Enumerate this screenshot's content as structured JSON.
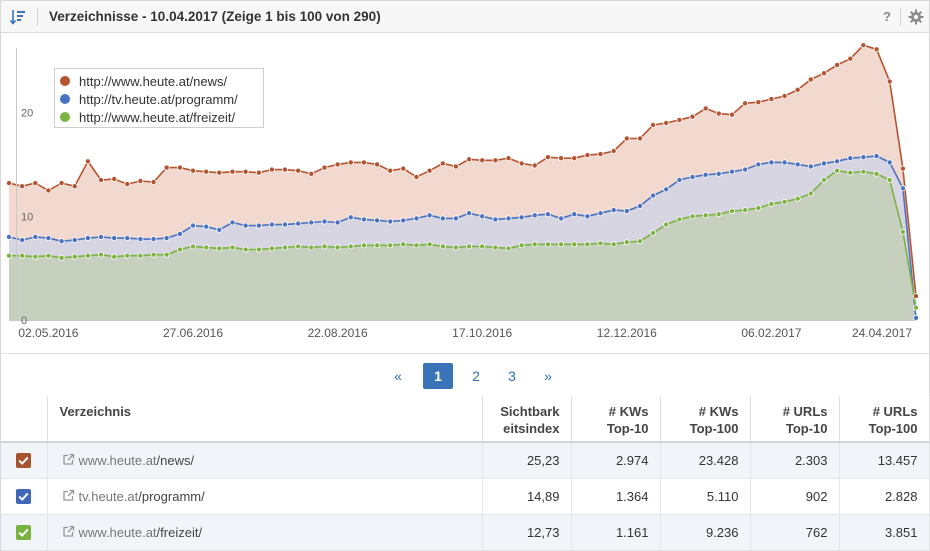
{
  "header": {
    "title": "Verzeichnisse - 10.04.2017 (Zeige 1 bis 100 von 290)",
    "help_label": "?"
  },
  "chart_data": {
    "type": "area",
    "x_tick_labels": [
      "02.05.2016",
      "27.06.2016",
      "22.08.2016",
      "17.10.2016",
      "12.12.2016",
      "06.02.2017",
      "24.04.2017"
    ],
    "y_tick_labels": [
      "0",
      "10",
      "20"
    ],
    "ylim": [
      0,
      27
    ],
    "grid": false,
    "legend_position": "top-left",
    "series": [
      {
        "name": "http://www.heute.at/news/",
        "color": "#b5532f",
        "fill": "#f2d9d0",
        "values": [
          13.2,
          12.9,
          13.2,
          12.5,
          13.2,
          12.9,
          15.3,
          13.5,
          13.6,
          13.1,
          13.4,
          13.3,
          14.7,
          14.7,
          14.4,
          14.3,
          14.2,
          14.3,
          14.3,
          14.2,
          14.5,
          14.5,
          14.4,
          14.1,
          14.7,
          15.0,
          15.2,
          15.2,
          15.0,
          14.4,
          14.6,
          13.8,
          14.4,
          15.1,
          14.8,
          15.5,
          15.4,
          15.4,
          15.6,
          15.1,
          14.9,
          15.7,
          15.6,
          15.6,
          15.9,
          16.0,
          16.3,
          17.5,
          17.5,
          18.8,
          19.0,
          19.3,
          19.6,
          20.4,
          19.9,
          19.8,
          20.9,
          21.0,
          21.3,
          21.6,
          22.2,
          23.2,
          23.8,
          24.6,
          25.2,
          26.5,
          26.1,
          23.0,
          14.6,
          2.3
        ]
      },
      {
        "name": "http://tv.heute.at/programm/",
        "color": "#4a72c2",
        "fill": "#d3d3e6",
        "values": [
          8.0,
          7.7,
          8.0,
          7.9,
          7.6,
          7.7,
          7.9,
          8.0,
          7.9,
          7.9,
          7.8,
          7.8,
          7.9,
          8.3,
          9.1,
          9.0,
          8.7,
          9.4,
          9.1,
          9.1,
          9.2,
          9.2,
          9.3,
          9.4,
          9.5,
          9.4,
          9.9,
          9.7,
          9.6,
          9.5,
          9.6,
          9.8,
          10.1,
          9.8,
          9.8,
          10.3,
          10.0,
          9.7,
          9.8,
          9.9,
          10.1,
          10.2,
          9.8,
          10.2,
          10.0,
          10.3,
          10.6,
          10.5,
          11.0,
          12.0,
          12.6,
          13.5,
          13.8,
          14.0,
          14.1,
          14.3,
          14.5,
          15.0,
          15.2,
          15.2,
          15.0,
          14.8,
          15.1,
          15.3,
          15.6,
          15.7,
          15.8,
          15.2,
          12.7,
          0.2
        ]
      },
      {
        "name": "http://www.heute.at/freizeit/",
        "color": "#7cb343",
        "fill": "#c4cfb7",
        "values": [
          6.2,
          6.2,
          6.1,
          6.2,
          6.0,
          6.1,
          6.2,
          6.3,
          6.1,
          6.2,
          6.2,
          6.3,
          6.3,
          6.8,
          7.1,
          7.0,
          6.9,
          7.0,
          6.8,
          6.8,
          6.9,
          7.0,
          7.1,
          7.0,
          7.1,
          7.0,
          7.1,
          7.2,
          7.2,
          7.2,
          7.3,
          7.2,
          7.3,
          7.1,
          7.0,
          7.1,
          7.1,
          7.0,
          6.9,
          7.2,
          7.3,
          7.3,
          7.3,
          7.3,
          7.3,
          7.4,
          7.3,
          7.5,
          7.6,
          8.4,
          9.2,
          9.7,
          10.0,
          10.1,
          10.2,
          10.5,
          10.6,
          10.8,
          11.2,
          11.4,
          11.7,
          12.2,
          13.5,
          14.4,
          14.2,
          14.3,
          14.1,
          13.5,
          8.5,
          1.2
        ]
      }
    ]
  },
  "legend": [
    {
      "label": "http://www.heute.at/news/",
      "color": "#b5532f"
    },
    {
      "label": "http://tv.heute.at/programm/",
      "color": "#4a72c2"
    },
    {
      "label": "http://www.heute.at/freizeit/",
      "color": "#7cb343"
    }
  ],
  "pagination": {
    "prev": "«",
    "pages": [
      "1",
      "2",
      "3"
    ],
    "next": "»",
    "current": "1"
  },
  "table": {
    "columns": {
      "name": "Verzeichnis",
      "si_1": "Sichtbark",
      "si_2": "eitsindex",
      "kw10_1": "# KWs",
      "kw10_2": "Top-10",
      "kw100_1": "# KWs",
      "kw100_2": "Top-100",
      "url10_1": "# URLs",
      "url10_2": "Top-10",
      "url100_1": "# URLs",
      "url100_2": "Top-100"
    },
    "rows": [
      {
        "checkbox_color": "#a8532f",
        "host": "www.heute.at",
        "path": "/news/",
        "sichtbarkeitsindex": "25,23",
        "kws_top10": "2.974",
        "kws_top100": "23.428",
        "urls_top10": "2.303",
        "urls_top100": "13.457"
      },
      {
        "checkbox_color": "#3f69b8",
        "host": "tv.heute.at",
        "path": "/programm/",
        "sichtbarkeitsindex": "14,89",
        "kws_top10": "1.364",
        "kws_top100": "5.110",
        "urls_top10": "902",
        "urls_top100": "2.828"
      },
      {
        "checkbox_color": "#78b23f",
        "host": "www.heute.at",
        "path": "/freizeit/",
        "sichtbarkeitsindex": "12,73",
        "kws_top10": "1.161",
        "kws_top100": "9.236",
        "urls_top10": "762",
        "urls_top100": "3.851"
      }
    ]
  }
}
